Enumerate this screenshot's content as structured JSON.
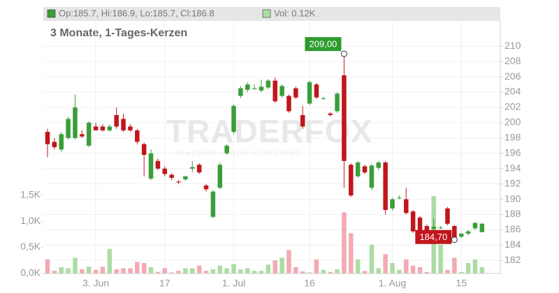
{
  "chart_data": {
    "type": "candlestick",
    "header": "Op:185.7, Hi:186.9, Lo:185.7, Cl:186.8",
    "volume_header": "Vol: 0.12K",
    "subtitle": "3 Monate, 1-Tages-Kerzen",
    "watermark": "TRADERFOX",
    "watermark_sub": "REALTIME STOCK SCREENING",
    "categories": [
      null,
      null,
      null,
      null,
      null,
      null,
      null,
      "3. Jun",
      null,
      null,
      null,
      null,
      null,
      null,
      null,
      null,
      null,
      "17",
      null,
      null,
      null,
      null,
      null,
      null,
      null,
      null,
      null,
      "1. Jul",
      null,
      null,
      null,
      null,
      null,
      null,
      null,
      null,
      null,
      null,
      "16",
      null,
      null,
      null,
      null,
      null,
      null,
      null,
      null,
      null,
      null,
      null,
      "1. Aug",
      null,
      null,
      null,
      null,
      null,
      null,
      null,
      null,
      null,
      "15",
      null,
      null,
      null
    ],
    "open": [
      198.8,
      197.5,
      196.5,
      198,
      198,
      198.5,
      197,
      199.5,
      199.5,
      199,
      201,
      200.5,
      199.5,
      199,
      197.2,
      192.7,
      195,
      194,
      193.2,
      192.3,
      192.6,
      194,
      194.5,
      191.8,
      187.7,
      191.5,
      196,
      198.8,
      203.5,
      204.3,
      204.5,
      204.2,
      204.6,
      205.5,
      203.5,
      203.5,
      204.5,
      201,
      202.5,
      205,
      203.2,
      201.2,
      201.5,
      206.2,
      194.5,
      193,
      194.3,
      191.5,
      194.1,
      194.8,
      188.8,
      190.2,
      190,
      188.4,
      187.6,
      186.5,
      186.1,
      186.3,
      188.8,
      186.5,
      185.1,
      185.5,
      186.2,
      185.7
    ],
    "high": [
      199.2,
      198,
      198.8,
      200.8,
      203.7,
      199,
      200.2,
      200,
      199.8,
      199.8,
      202,
      201.2,
      199.8,
      199.2,
      197.4,
      196.5,
      195.3,
      194.3,
      193.4,
      192.5,
      193,
      195,
      194.7,
      192,
      191.2,
      194.8,
      197.2,
      202.4,
      204.8,
      205.3,
      205,
      205.6,
      205.7,
      205.9,
      205,
      203.7,
      204.7,
      202.2,
      205.5,
      205.2,
      203.4,
      201.4,
      204,
      209,
      194.7,
      195,
      194.5,
      194.6,
      195,
      195,
      190.2,
      190.5,
      191.5,
      188.6,
      187.8,
      186.7,
      187.5,
      186.5,
      189,
      186.6,
      185.6,
      186,
      187,
      186.9
    ],
    "low": [
      195.5,
      196.5,
      196.2,
      197.8,
      197.8,
      198,
      196.8,
      199,
      198.8,
      198.8,
      199.2,
      198.8,
      198.8,
      197.2,
      193,
      192.5,
      193.8,
      193,
      192.5,
      192,
      192.4,
      193.5,
      193.3,
      191,
      187.5,
      191.3,
      195.8,
      198.5,
      203.2,
      204,
      204.3,
      204,
      204.4,
      202.6,
      203.3,
      201.3,
      203.1,
      199.2,
      202.3,
      203.1,
      203,
      200.8,
      201.3,
      191.5,
      190.3,
      192.8,
      193.3,
      191.2,
      193.8,
      188,
      188.5,
      190,
      188,
      185.6,
      185.6,
      184.8,
      185.9,
      186.1,
      186.6,
      184.7,
      184.9,
      185.3,
      186,
      185.7
    ],
    "close": [
      197.2,
      196.8,
      198.5,
      200.5,
      202,
      198.2,
      200,
      199,
      199,
      199.5,
      199.5,
      199,
      199,
      197.5,
      195.8,
      196,
      194,
      193.3,
      192.8,
      192.2,
      193,
      194.2,
      193.5,
      191.3,
      191,
      194.5,
      197,
      202.2,
      204.5,
      205,
      204.5,
      204.7,
      205.5,
      202.8,
      204.8,
      201.5,
      203.3,
      199.5,
      205.3,
      203.3,
      203.2,
      201,
      203.8,
      195,
      190.5,
      194.8,
      193.5,
      194.4,
      194.8,
      188.6,
      190,
      190.2,
      188.2,
      185.8,
      185.8,
      185,
      186.4,
      186.3,
      186.8,
      184.7,
      185.5,
      185.8,
      186.9,
      186.8
    ],
    "volume": [
      0.27,
      0.05,
      0.12,
      0.1,
      0.3,
      0.08,
      0.13,
      0.07,
      0.13,
      0.47,
      0.08,
      0.1,
      0.1,
      0.22,
      0.2,
      0.12,
      0.03,
      0.1,
      0.02,
      0.05,
      0.1,
      0.1,
      0.15,
      0.05,
      0.08,
      0.15,
      0.1,
      0.18,
      0.08,
      0.1,
      0.05,
      0.05,
      0.17,
      0.25,
      0.3,
      0.45,
      0.12,
      0.04,
      0.02,
      0.27,
      0.07,
      0.03,
      0.08,
      1.17,
      0.77,
      0.27,
      0.05,
      0.55,
      0.1,
      0.37,
      0.2,
      0.07,
      0.27,
      0.15,
      0.12,
      0.03,
      1.48,
      0.55,
      0.07,
      0.3,
      0.03,
      0.2,
      0.27,
      0.12
    ],
    "up_color": "#3a9e3a",
    "down_color": "#c0161c",
    "up_volume_color": "#acdca4",
    "down_volume_color": "#f2aab2",
    "ylim": [
      180.3,
      213.3
    ],
    "yticks": [
      182,
      184,
      186,
      188,
      190,
      192,
      194,
      196,
      198,
      200,
      202,
      204,
      206,
      208,
      210
    ],
    "y2lim": [
      0,
      4.83
    ],
    "y2ticks": [
      {
        "value": 0,
        "label": "0,0K"
      },
      {
        "value": 0.5,
        "label": "0,5K"
      },
      {
        "value": 1,
        "label": "1,0K"
      },
      {
        "value": 1.5,
        "label": "1,5K"
      }
    ],
    "annotations": [
      {
        "label": "209,00",
        "value": 209,
        "color": "#2e9b2e"
      },
      {
        "label": "184,70",
        "value": 184.7,
        "color": "#c0161c"
      }
    ],
    "grid": true
  }
}
